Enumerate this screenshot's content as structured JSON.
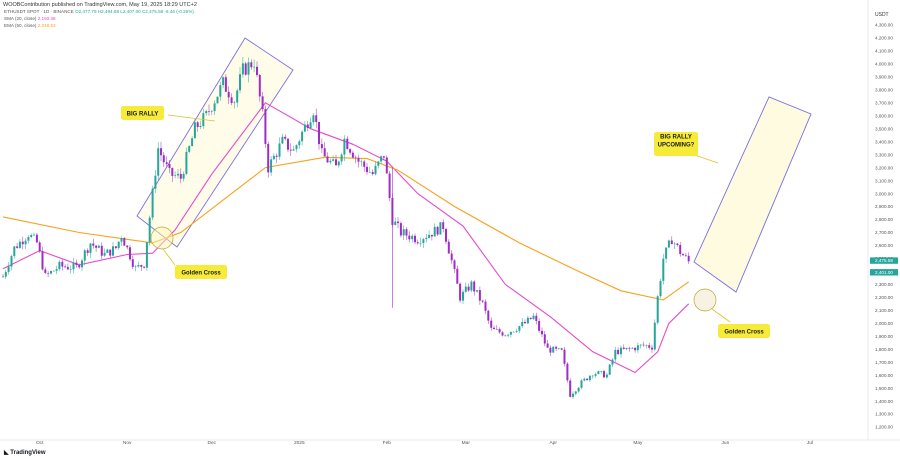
{
  "header": {
    "published_by": "WOOBContribution published on TradingView.com, May 19, 2025 18:29 UTC+2"
  },
  "legend": {
    "symbol_line": "ETHUSDT SPOT · 1D · BINANCE",
    "ohlc": "O2,477.79 H2,494.68 L2,407.00 C2,475.58 -6.46 (-0.26%)",
    "sma_label": "SMA (20, close)",
    "sma_value": "2,150.38",
    "ema_label": "EMA (50, close)",
    "ema_value": "2,318.53"
  },
  "footer": {
    "logo_text": "TradingView"
  },
  "chart_data": {
    "type": "line",
    "title": "",
    "xlabel": "",
    "ylabel": "",
    "y_axis_unit": "USDT",
    "ylim": [
      1100,
      4350
    ],
    "x_tick_labels": [
      "Oct",
      "Nov",
      "Dec",
      "2025",
      "Feb",
      "Mar",
      "Apr",
      "May",
      "Jun",
      "Jul"
    ],
    "y_tick_labels": [
      "4,300.00",
      "4,200.00",
      "4,100.00",
      "4,000.00",
      "3,900.00",
      "3,800.00",
      "3,700.00",
      "3,600.00",
      "3,500.00",
      "3,400.00",
      "3,300.00",
      "3,200.00",
      "3,100.00",
      "3,000.00",
      "2,900.00",
      "2,800.00",
      "2,700.00",
      "2,600.00",
      "2,500.00",
      "2,400.00",
      "2,300.00",
      "2,200.00",
      "2,100.00",
      "2,000.00",
      "1,900.00",
      "1,800.00",
      "1,700.00",
      "1,600.00",
      "1,500.00",
      "1,400.00",
      "1,300.00",
      "1,200.00"
    ],
    "price_labels": [
      "2,475.58",
      "2,401.00"
    ],
    "price_series": [
      [
        "2024-09-18",
        2360
      ],
      [
        "2024-09-22",
        2580
      ],
      [
        "2024-09-27",
        2690
      ],
      [
        "2024-09-30",
        2620
      ],
      [
        "2024-10-03",
        2360
      ],
      [
        "2024-10-08",
        2440
      ],
      [
        "2024-10-14",
        2430
      ],
      [
        "2024-10-19",
        2620
      ],
      [
        "2024-10-24",
        2530
      ],
      [
        "2024-10-28",
        2580
      ],
      [
        "2024-10-30",
        2680
      ],
      [
        "2024-11-04",
        2420
      ],
      [
        "2024-11-07",
        2460
      ],
      [
        "2024-11-10",
        3000
      ],
      [
        "2024-11-12",
        3350
      ],
      [
        "2024-11-16",
        3150
      ],
      [
        "2024-11-20",
        3120
      ],
      [
        "2024-11-25",
        3500
      ],
      [
        "2024-11-29",
        3600
      ],
      [
        "2024-12-05",
        3850
      ],
      [
        "2024-12-09",
        3720
      ],
      [
        "2024-12-12",
        3950
      ],
      [
        "2024-12-16",
        4020
      ],
      [
        "2024-12-19",
        3600
      ],
      [
        "2024-12-21",
        3200
      ],
      [
        "2024-12-26",
        3400
      ],
      [
        "2024-12-30",
        3330
      ],
      [
        "2025-01-02",
        3470
      ],
      [
        "2025-01-06",
        3650
      ],
      [
        "2025-01-09",
        3300
      ],
      [
        "2025-01-14",
        3200
      ],
      [
        "2025-01-17",
        3420
      ],
      [
        "2025-01-22",
        3250
      ],
      [
        "2025-01-27",
        3150
      ],
      [
        "2025-01-31",
        3300
      ],
      [
        "2025-02-03",
        2800
      ],
      [
        "2025-02-06",
        2700
      ],
      [
        "2025-02-12",
        2650
      ],
      [
        "2025-02-17",
        2700
      ],
      [
        "2025-02-21",
        2750
      ],
      [
        "2025-02-24",
        2480
      ],
      [
        "2025-02-27",
        2200
      ],
      [
        "2025-03-03",
        2300
      ],
      [
        "2025-03-07",
        2150
      ],
      [
        "2025-03-10",
        1950
      ],
      [
        "2025-03-15",
        1920
      ],
      [
        "2025-03-22",
        2000
      ],
      [
        "2025-03-25",
        2050
      ],
      [
        "2025-03-30",
        1800
      ],
      [
        "2025-04-04",
        1780
      ],
      [
        "2025-04-07",
        1450
      ],
      [
        "2025-04-10",
        1520
      ],
      [
        "2025-04-15",
        1620
      ],
      [
        "2025-04-20",
        1600
      ],
      [
        "2025-04-23",
        1780
      ],
      [
        "2025-04-28",
        1800
      ],
      [
        "2025-05-03",
        1830
      ],
      [
        "2025-05-06",
        1820
      ],
      [
        "2025-05-08",
        2200
      ],
      [
        "2025-05-10",
        2500
      ],
      [
        "2025-05-13",
        2650
      ],
      [
        "2025-05-16",
        2550
      ],
      [
        "2025-05-19",
        2475
      ]
    ],
    "series": [
      {
        "name": "SMA (20, close)",
        "color": "#e84acb",
        "points": [
          [
            "2024-09-18",
            2420
          ],
          [
            "2024-10-01",
            2560
          ],
          [
            "2024-10-15",
            2450
          ],
          [
            "2024-11-01",
            2530
          ],
          [
            "2024-11-10",
            2540
          ],
          [
            "2024-11-18",
            2720
          ],
          [
            "2024-12-01",
            3150
          ],
          [
            "2024-12-20",
            3700
          ],
          [
            "2025-01-05",
            3500
          ],
          [
            "2025-01-20",
            3380
          ],
          [
            "2025-02-01",
            3250
          ],
          [
            "2025-02-12",
            3000
          ],
          [
            "2025-02-28",
            2750
          ],
          [
            "2025-03-15",
            2300
          ],
          [
            "2025-03-31",
            2050
          ],
          [
            "2025-04-15",
            1780
          ],
          [
            "2025-04-30",
            1620
          ],
          [
            "2025-05-08",
            1780
          ],
          [
            "2025-05-12",
            2000
          ],
          [
            "2025-05-19",
            2150
          ]
        ]
      },
      {
        "name": "EMA (50, close)",
        "color": "#f7a21b",
        "points": [
          [
            "2024-09-18",
            2820
          ],
          [
            "2024-10-15",
            2700
          ],
          [
            "2024-11-10",
            2620
          ],
          [
            "2024-11-20",
            2700
          ],
          [
            "2024-12-05",
            2950
          ],
          [
            "2024-12-20",
            3200
          ],
          [
            "2025-01-10",
            3280
          ],
          [
            "2025-01-25",
            3270
          ],
          [
            "2025-02-05",
            3180
          ],
          [
            "2025-02-25",
            2900
          ],
          [
            "2025-03-20",
            2620
          ],
          [
            "2025-04-10",
            2400
          ],
          [
            "2025-04-25",
            2250
          ],
          [
            "2025-05-10",
            2180
          ],
          [
            "2025-05-19",
            2320
          ]
        ]
      }
    ],
    "annotations": [
      {
        "text": "BIG RALLY",
        "bg": "#f6eb38"
      },
      {
        "text": "Golden Cross",
        "bg": "#f6eb38"
      },
      {
        "text": "BIG RALLY\nUPCOMING?",
        "bg": "#f6eb38"
      },
      {
        "text": "Golden Cross",
        "bg": "#f6eb38"
      }
    ],
    "colors": {
      "up": "#26a69a",
      "down": "#a02cc7",
      "channel": "#7b6fe0",
      "channel_fill": "#fffbe0",
      "last_price_bg": "#26a69a"
    },
    "grid": false,
    "legend_position": "top-left"
  }
}
